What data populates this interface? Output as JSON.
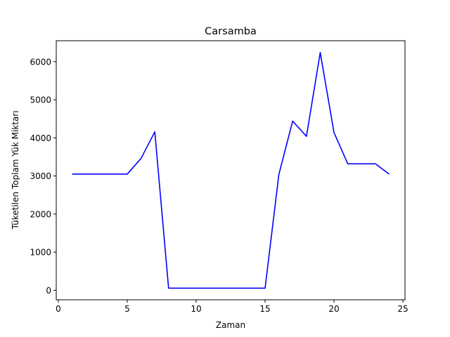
{
  "chart_data": {
    "type": "line",
    "title": "Carsamba",
    "xlabel": "Zaman",
    "ylabel": "Tüketilen Toplam Yük Miktarı",
    "xlim": [
      -0.15,
      25.15
    ],
    "ylim": [
      -250,
      6550
    ],
    "xticks": [
      0,
      5,
      10,
      15,
      20,
      25
    ],
    "yticks": [
      0,
      1000,
      2000,
      3000,
      4000,
      5000,
      6000
    ],
    "grid": false,
    "series": [
      {
        "color": "#0000ff",
        "x": [
          1,
          2,
          3,
          4,
          5,
          6,
          7,
          8,
          9,
          10,
          11,
          12,
          13,
          14,
          15,
          16,
          17,
          18,
          19,
          20,
          21,
          22,
          23,
          24
        ],
        "y": [
          3050,
          3050,
          3050,
          3050,
          3050,
          3460,
          4160,
          55,
          55,
          55,
          55,
          55,
          55,
          55,
          55,
          3040,
          4440,
          4040,
          6240,
          4140,
          3320,
          3320,
          3320,
          3050
        ]
      }
    ]
  }
}
